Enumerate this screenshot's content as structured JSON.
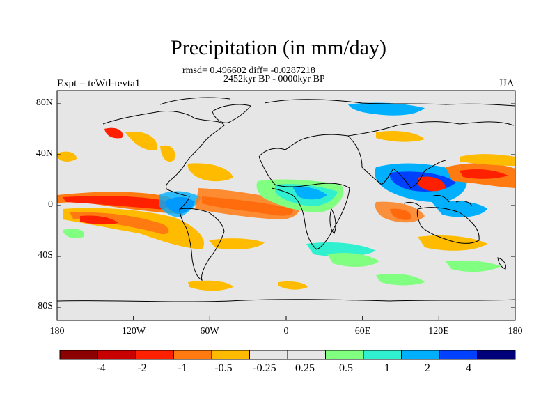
{
  "title": "Precipitation (in mm/day)",
  "stats_line": "rmsd= 0.496602 diff= -0.0287218",
  "period_line": "2452kyr BP - 0000kyr BP",
  "experiment_label": "Expt = teWtl-tevta1",
  "season_label": "JJA",
  "y_axis_labels": [
    "80N",
    "40N",
    "0",
    "40S",
    "80S"
  ],
  "x_axis_labels": [
    "180",
    "120W",
    "60W",
    "0",
    "60E",
    "120E",
    "180"
  ],
  "colorbar": {
    "colors": [
      "#8b0000",
      "#c80000",
      "#ff2000",
      "#ff7a10",
      "#ffbb00",
      "#e6e6e6",
      "#e6e6e6",
      "#80ff80",
      "#30f0d0",
      "#00b0ff",
      "#0040ff",
      "#00007a"
    ],
    "labels": [
      "-4",
      "-2",
      "-1",
      "-0.5",
      "-0.25",
      "0.25",
      "0.5",
      "1",
      "2",
      "4"
    ]
  },
  "colors": {
    "land_ocean_fill": "#e6e6e6",
    "coastline": "#000000"
  }
}
